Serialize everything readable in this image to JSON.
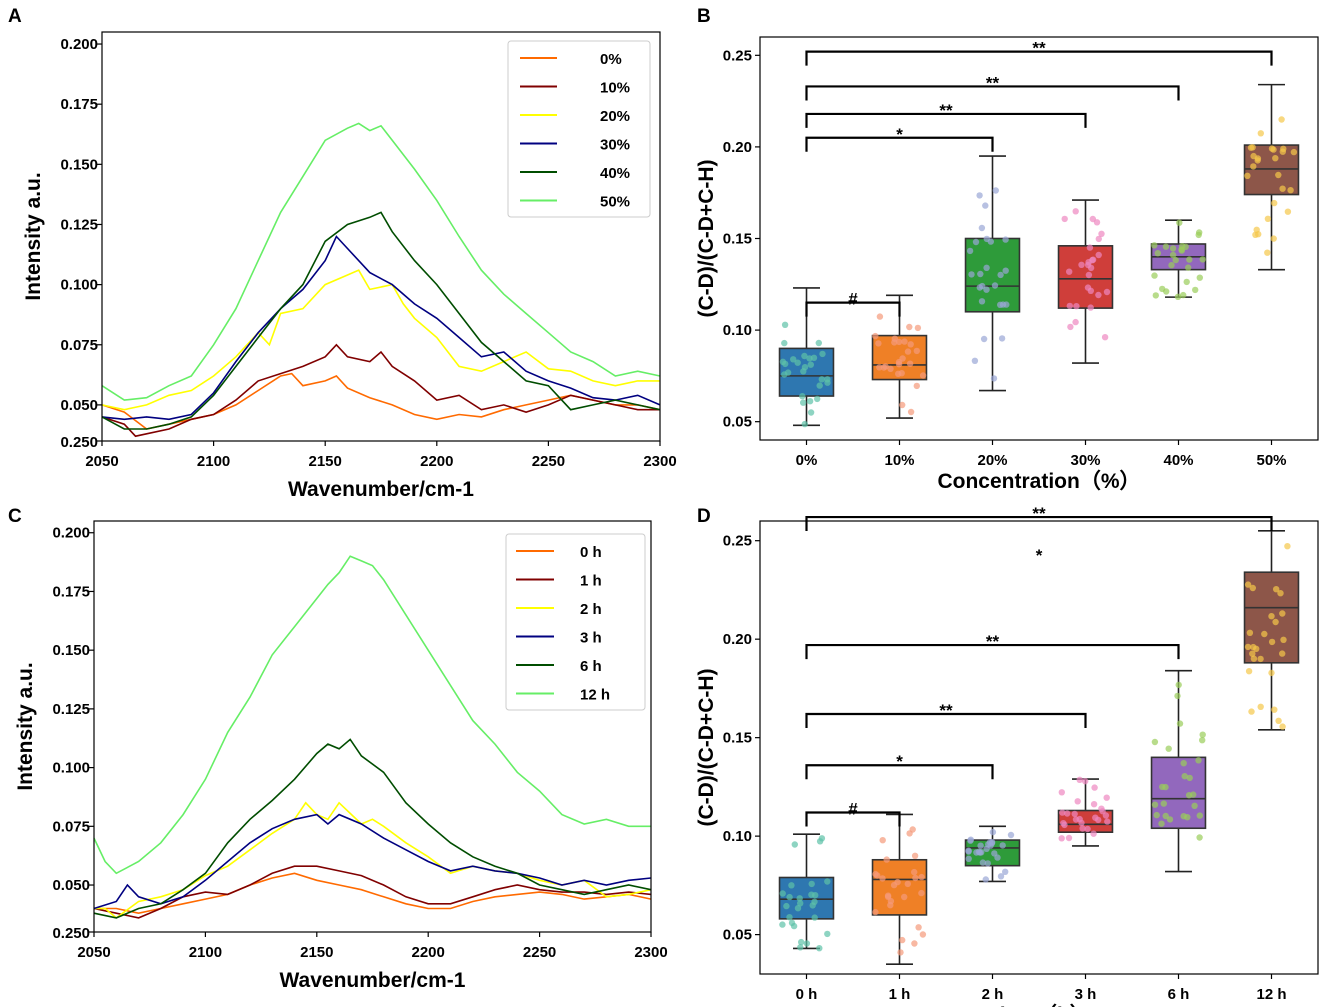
{
  "chart_data": [
    {
      "panel": "A",
      "type": "line",
      "xlabel": "Wavenumber/cm-1",
      "ylabel": "Intensity a.u.",
      "xlim": [
        2050,
        2300
      ],
      "ylim": [
        0.035,
        0.205
      ],
      "x_ticks": [
        2050,
        2100,
        2150,
        2200,
        2250,
        2300
      ],
      "y_ticks": [
        0.05,
        0.075,
        0.1,
        0.125,
        0.15,
        0.175,
        0.2
      ],
      "y_tick_labels": [
        "0.050",
        "0.075",
        "0.100",
        "0.125",
        "0.150",
        "0.175",
        "0.200"
      ],
      "y_bottom_label": "0.250",
      "legend_position": "top-right",
      "series": [
        {
          "name": "0%",
          "color": "#ff6a00",
          "x": [
            2050,
            2060,
            2070,
            2080,
            2090,
            2100,
            2110,
            2120,
            2130,
            2135,
            2140,
            2150,
            2155,
            2160,
            2170,
            2180,
            2190,
            2200,
            2210,
            2220,
            2230,
            2240,
            2250,
            2260,
            2270,
            2280,
            2290,
            2300
          ],
          "y": [
            0.05,
            0.047,
            0.04,
            0.042,
            0.044,
            0.046,
            0.05,
            0.056,
            0.062,
            0.063,
            0.058,
            0.06,
            0.062,
            0.057,
            0.053,
            0.05,
            0.046,
            0.044,
            0.046,
            0.045,
            0.048,
            0.05,
            0.052,
            0.054,
            0.052,
            0.05,
            0.05,
            0.048
          ]
        },
        {
          "name": "10%",
          "color": "#800000",
          "x": [
            2050,
            2060,
            2065,
            2070,
            2080,
            2090,
            2100,
            2110,
            2120,
            2130,
            2140,
            2150,
            2155,
            2160,
            2170,
            2175,
            2180,
            2190,
            2200,
            2210,
            2220,
            2230,
            2240,
            2250,
            2260,
            2270,
            2280,
            2290,
            2300
          ],
          "y": [
            0.045,
            0.042,
            0.037,
            0.038,
            0.04,
            0.044,
            0.046,
            0.052,
            0.06,
            0.063,
            0.066,
            0.07,
            0.075,
            0.07,
            0.068,
            0.072,
            0.066,
            0.06,
            0.052,
            0.054,
            0.048,
            0.05,
            0.047,
            0.05,
            0.054,
            0.052,
            0.05,
            0.048,
            0.048
          ]
        },
        {
          "name": "20%",
          "color": "#ffff00",
          "x": [
            2050,
            2060,
            2070,
            2080,
            2090,
            2100,
            2110,
            2120,
            2125,
            2130,
            2140,
            2150,
            2160,
            2165,
            2170,
            2180,
            2185,
            2190,
            2200,
            2210,
            2220,
            2230,
            2240,
            2250,
            2260,
            2270,
            2280,
            2290,
            2300
          ],
          "y": [
            0.05,
            0.048,
            0.05,
            0.054,
            0.056,
            0.062,
            0.07,
            0.08,
            0.075,
            0.088,
            0.09,
            0.1,
            0.104,
            0.106,
            0.098,
            0.1,
            0.092,
            0.086,
            0.078,
            0.066,
            0.064,
            0.068,
            0.072,
            0.065,
            0.064,
            0.06,
            0.058,
            0.06,
            0.06
          ]
        },
        {
          "name": "30%",
          "color": "#000080",
          "x": [
            2050,
            2060,
            2070,
            2080,
            2090,
            2100,
            2110,
            2120,
            2130,
            2140,
            2150,
            2155,
            2160,
            2170,
            2180,
            2190,
            2200,
            2210,
            2220,
            2230,
            2240,
            2250,
            2260,
            2270,
            2280,
            2290,
            2300
          ],
          "y": [
            0.045,
            0.044,
            0.045,
            0.044,
            0.046,
            0.055,
            0.068,
            0.08,
            0.09,
            0.098,
            0.11,
            0.12,
            0.115,
            0.105,
            0.1,
            0.092,
            0.086,
            0.078,
            0.07,
            0.072,
            0.064,
            0.06,
            0.057,
            0.053,
            0.052,
            0.054,
            0.05
          ]
        },
        {
          "name": "40%",
          "color": "#004d00",
          "x": [
            2050,
            2060,
            2070,
            2080,
            2090,
            2100,
            2110,
            2120,
            2130,
            2140,
            2150,
            2160,
            2170,
            2175,
            2180,
            2190,
            2200,
            2210,
            2220,
            2230,
            2240,
            2250,
            2260,
            2270,
            2280,
            2290,
            2300
          ],
          "y": [
            0.045,
            0.04,
            0.04,
            0.042,
            0.045,
            0.054,
            0.066,
            0.078,
            0.09,
            0.1,
            0.118,
            0.125,
            0.128,
            0.13,
            0.122,
            0.11,
            0.1,
            0.088,
            0.076,
            0.068,
            0.06,
            0.058,
            0.048,
            0.05,
            0.052,
            0.05,
            0.048
          ]
        },
        {
          "name": "50%",
          "color": "#66ee66",
          "x": [
            2050,
            2060,
            2070,
            2080,
            2090,
            2100,
            2110,
            2120,
            2130,
            2140,
            2150,
            2160,
            2165,
            2170,
            2175,
            2180,
            2190,
            2200,
            2210,
            2220,
            2230,
            2240,
            2250,
            2260,
            2270,
            2280,
            2290,
            2300
          ],
          "y": [
            0.058,
            0.052,
            0.053,
            0.058,
            0.062,
            0.075,
            0.09,
            0.11,
            0.13,
            0.145,
            0.16,
            0.165,
            0.167,
            0.164,
            0.166,
            0.16,
            0.148,
            0.135,
            0.12,
            0.106,
            0.096,
            0.088,
            0.08,
            0.072,
            0.068,
            0.062,
            0.064,
            0.062
          ]
        }
      ]
    },
    {
      "panel": "B",
      "type": "box",
      "xlabel": "Concentration（%）",
      "ylabel": "(C-D)/(C-D+C-H)",
      "ylim": [
        0.04,
        0.26
      ],
      "y_ticks": [
        0.05,
        0.1,
        0.15,
        0.2,
        0.25
      ],
      "y_tick_labels": [
        "0.05",
        "0.10",
        "0.15",
        "0.20",
        "0.25"
      ],
      "categories": [
        "0%",
        "10%",
        "20%",
        "30%",
        "40%",
        "50%"
      ],
      "colors": [
        "#2e77b0",
        "#ef8026",
        "#2e9b3a",
        "#cf3e3a",
        "#9268bd",
        "#8d5649"
      ],
      "boxes": [
        {
          "min": 0.048,
          "q1": 0.064,
          "median": 0.075,
          "q3": 0.09,
          "max": 0.123
        },
        {
          "min": 0.052,
          "q1": 0.073,
          "median": 0.081,
          "q3": 0.097,
          "max": 0.119
        },
        {
          "min": 0.067,
          "q1": 0.11,
          "median": 0.124,
          "q3": 0.15,
          "max": 0.195
        },
        {
          "min": 0.082,
          "q1": 0.112,
          "median": 0.128,
          "q3": 0.146,
          "max": 0.171
        },
        {
          "min": 0.118,
          "q1": 0.133,
          "median": 0.14,
          "q3": 0.147,
          "max": 0.16
        },
        {
          "min": 0.133,
          "q1": 0.174,
          "median": 0.188,
          "q3": 0.201,
          "max": 0.234
        }
      ],
      "significance": [
        {
          "from": "0%",
          "to": "10%",
          "level": 0.115,
          "label": "#"
        },
        {
          "from": "0%",
          "to": "20%",
          "level": 0.205,
          "label": "*"
        },
        {
          "from": "0%",
          "to": "30%",
          "level": 0.218,
          "label": "**"
        },
        {
          "from": "0%",
          "to": "40%",
          "level": 0.233,
          "label": "**"
        },
        {
          "from": "0%",
          "to": "50%",
          "level": 0.252,
          "label": "**"
        }
      ]
    },
    {
      "panel": "C",
      "type": "line",
      "xlabel": "Wavenumber/cm-1",
      "ylabel": "Intensity a.u.",
      "xlim": [
        2050,
        2300
      ],
      "ylim": [
        0.03,
        0.205
      ],
      "x_ticks": [
        2050,
        2100,
        2150,
        2200,
        2250,
        2300
      ],
      "y_ticks": [
        0.05,
        0.075,
        0.1,
        0.125,
        0.15,
        0.175,
        0.2
      ],
      "y_tick_labels": [
        "0.050",
        "0.075",
        "0.100",
        "0.125",
        "0.150",
        "0.175",
        "0.200"
      ],
      "y_bottom_label": "0.250",
      "legend_position": "top-right",
      "series": [
        {
          "name": "0 h",
          "color": "#ff6a00",
          "x": [
            2050,
            2060,
            2070,
            2080,
            2090,
            2100,
            2110,
            2120,
            2130,
            2140,
            2150,
            2160,
            2170,
            2180,
            2190,
            2200,
            2210,
            2220,
            2230,
            2240,
            2250,
            2260,
            2270,
            2280,
            2290,
            2300
          ],
          "y": [
            0.04,
            0.04,
            0.038,
            0.04,
            0.042,
            0.044,
            0.046,
            0.05,
            0.053,
            0.055,
            0.052,
            0.05,
            0.048,
            0.045,
            0.042,
            0.04,
            0.04,
            0.043,
            0.045,
            0.046,
            0.047,
            0.046,
            0.044,
            0.045,
            0.046,
            0.044
          ]
        },
        {
          "name": "1 h",
          "color": "#800000",
          "x": [
            2050,
            2060,
            2070,
            2080,
            2090,
            2100,
            2110,
            2120,
            2130,
            2140,
            2150,
            2160,
            2170,
            2180,
            2190,
            2200,
            2210,
            2220,
            2230,
            2240,
            2250,
            2260,
            2270,
            2280,
            2290,
            2300
          ],
          "y": [
            0.04,
            0.038,
            0.036,
            0.04,
            0.045,
            0.047,
            0.046,
            0.05,
            0.055,
            0.058,
            0.058,
            0.056,
            0.054,
            0.05,
            0.045,
            0.042,
            0.042,
            0.045,
            0.048,
            0.05,
            0.048,
            0.047,
            0.047,
            0.046,
            0.047,
            0.046
          ]
        },
        {
          "name": "2 h",
          "color": "#ffff00",
          "x": [
            2050,
            2055,
            2060,
            2070,
            2080,
            2090,
            2100,
            2110,
            2120,
            2130,
            2140,
            2145,
            2150,
            2155,
            2160,
            2170,
            2175,
            2180,
            2190,
            2200,
            2210,
            2220,
            2230,
            2240,
            2250,
            2260,
            2270,
            2280,
            2290,
            2300
          ],
          "y": [
            0.04,
            0.04,
            0.036,
            0.043,
            0.045,
            0.048,
            0.054,
            0.058,
            0.065,
            0.072,
            0.078,
            0.085,
            0.08,
            0.078,
            0.085,
            0.076,
            0.078,
            0.075,
            0.068,
            0.062,
            0.055,
            0.058,
            0.056,
            0.055,
            0.052,
            0.05,
            0.052,
            0.045,
            0.046,
            0.048
          ]
        },
        {
          "name": "3 h",
          "color": "#000080",
          "x": [
            2050,
            2060,
            2065,
            2070,
            2080,
            2090,
            2100,
            2110,
            2120,
            2130,
            2140,
            2150,
            2155,
            2160,
            2170,
            2180,
            2190,
            2200,
            2210,
            2220,
            2230,
            2240,
            2250,
            2260,
            2270,
            2280,
            2290,
            2300
          ],
          "y": [
            0.04,
            0.043,
            0.05,
            0.045,
            0.042,
            0.045,
            0.052,
            0.06,
            0.068,
            0.074,
            0.078,
            0.08,
            0.076,
            0.08,
            0.076,
            0.07,
            0.065,
            0.06,
            0.056,
            0.058,
            0.056,
            0.055,
            0.053,
            0.05,
            0.052,
            0.05,
            0.052,
            0.053
          ]
        },
        {
          "name": "6 h",
          "color": "#004d00",
          "x": [
            2050,
            2060,
            2070,
            2080,
            2090,
            2100,
            2110,
            2120,
            2130,
            2140,
            2150,
            2155,
            2160,
            2165,
            2170,
            2180,
            2190,
            2200,
            2210,
            2220,
            2230,
            2240,
            2250,
            2260,
            2270,
            2280,
            2290,
            2300
          ],
          "y": [
            0.038,
            0.036,
            0.04,
            0.042,
            0.048,
            0.055,
            0.068,
            0.078,
            0.086,
            0.095,
            0.106,
            0.11,
            0.108,
            0.112,
            0.105,
            0.098,
            0.085,
            0.076,
            0.068,
            0.062,
            0.058,
            0.055,
            0.05,
            0.048,
            0.046,
            0.048,
            0.05,
            0.048
          ]
        },
        {
          "name": "12 h",
          "color": "#66ee66",
          "x": [
            2050,
            2055,
            2060,
            2070,
            2080,
            2090,
            2100,
            2110,
            2120,
            2130,
            2140,
            2150,
            2155,
            2160,
            2165,
            2170,
            2175,
            2180,
            2190,
            2200,
            2210,
            2220,
            2230,
            2240,
            2250,
            2260,
            2270,
            2280,
            2290,
            2300
          ],
          "y": [
            0.07,
            0.06,
            0.055,
            0.06,
            0.068,
            0.08,
            0.095,
            0.115,
            0.13,
            0.148,
            0.16,
            0.172,
            0.178,
            0.183,
            0.19,
            0.188,
            0.186,
            0.18,
            0.165,
            0.15,
            0.135,
            0.12,
            0.11,
            0.098,
            0.09,
            0.08,
            0.076,
            0.078,
            0.075,
            0.075
          ]
        }
      ]
    },
    {
      "panel": "D",
      "type": "box",
      "xlabel": "Time（h）",
      "ylabel": "(C-D)/(C-D+C-H)",
      "ylim": [
        0.03,
        0.26
      ],
      "y_ticks": [
        0.05,
        0.1,
        0.15,
        0.2,
        0.25
      ],
      "y_tick_labels": [
        "0.05",
        "0.10",
        "0.15",
        "0.20",
        "0.25"
      ],
      "categories": [
        "0 h",
        "1 h",
        "2 h",
        "3 h",
        "6 h",
        "12 h"
      ],
      "colors": [
        "#2e77b0",
        "#ef8026",
        "#2e9b3a",
        "#cf3e3a",
        "#9268bd",
        "#8d5649"
      ],
      "boxes": [
        {
          "min": 0.043,
          "q1": 0.058,
          "median": 0.068,
          "q3": 0.079,
          "max": 0.101
        },
        {
          "min": 0.035,
          "q1": 0.06,
          "median": 0.078,
          "q3": 0.088,
          "max": 0.111
        },
        {
          "min": 0.077,
          "q1": 0.085,
          "median": 0.094,
          "q3": 0.098,
          "max": 0.105
        },
        {
          "min": 0.095,
          "q1": 0.102,
          "median": 0.106,
          "q3": 0.113,
          "max": 0.129
        },
        {
          "min": 0.082,
          "q1": 0.104,
          "median": 0.119,
          "q3": 0.14,
          "max": 0.184
        },
        {
          "min": 0.154,
          "q1": 0.188,
          "median": 0.216,
          "q3": 0.234,
          "max": 0.255
        }
      ],
      "significance": [
        {
          "from": "0 h",
          "to": "1 h",
          "level": 0.112,
          "label": "#"
        },
        {
          "from": "0 h",
          "to": "2 h",
          "level": 0.136,
          "label": "*"
        },
        {
          "from": "0 h",
          "to": "3 h",
          "level": 0.162,
          "label": "**"
        },
        {
          "from": "0 h",
          "to": "6 h",
          "level": 0.197,
          "label": "**"
        },
        {
          "from": "0 h",
          "to": "12 h",
          "level": 0.262,
          "label": "**"
        }
      ],
      "extra_annotation": "*"
    }
  ]
}
